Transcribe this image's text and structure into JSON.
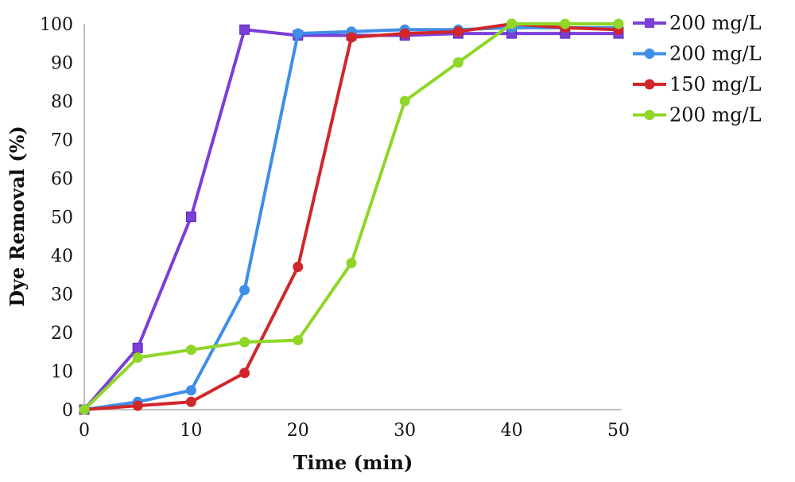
{
  "chart_data": {
    "type": "line",
    "title": "",
    "xlabel": "Time (min)",
    "ylabel": "Dye Removal (%)",
    "xlim": [
      0,
      50
    ],
    "ylim": [
      0,
      100
    ],
    "x_ticks": [
      0,
      10,
      20,
      30,
      40,
      50
    ],
    "y_ticks": [
      0,
      10,
      20,
      30,
      40,
      50,
      60,
      70,
      80,
      90,
      100
    ],
    "grid": false,
    "legend_position": "right",
    "x": [
      0,
      5,
      10,
      15,
      20,
      25,
      30,
      35,
      40,
      45,
      50
    ],
    "series": [
      {
        "name": "200 mg/L",
        "color": "#7B3FD9",
        "marker": "square",
        "values": [
          0,
          16,
          50,
          98.5,
          97,
          97,
          97,
          97.5,
          97.5,
          97.5,
          97.5
        ]
      },
      {
        "name": "200 mg/L",
        "color": "#3F8EE8",
        "marker": "circle",
        "values": [
          0,
          2,
          5,
          31,
          97.5,
          98,
          98.5,
          98.5,
          99,
          99,
          99
        ]
      },
      {
        "name": "150 mg/L",
        "color": "#D1262A",
        "marker": "circle",
        "values": [
          0,
          1,
          2,
          9.5,
          37,
          96.5,
          97.5,
          98,
          100,
          99,
          98.5
        ]
      },
      {
        "name": "200 mg/L",
        "color": "#8FD627",
        "marker": "circle",
        "values": [
          0,
          13.5,
          15.5,
          17.5,
          18,
          38,
          80,
          90,
          100,
          100,
          100
        ]
      }
    ]
  }
}
